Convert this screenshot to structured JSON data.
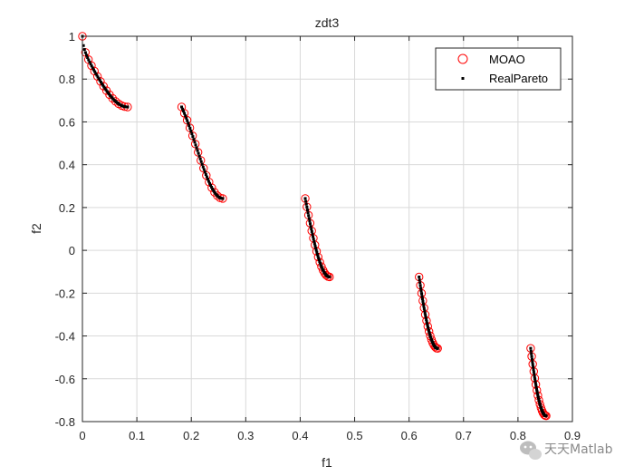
{
  "chart_data": {
    "type": "scatter",
    "title": "zdt3",
    "xlabel": "f1",
    "ylabel": "f2",
    "xlim": [
      0,
      0.9
    ],
    "ylim": [
      -0.8,
      1
    ],
    "xticks": [
      "0",
      "0.1",
      "0.2",
      "0.3",
      "0.4",
      "0.5",
      "0.6",
      "0.7",
      "0.8",
      "0.9"
    ],
    "yticks": [
      "-0.8",
      "-0.6",
      "-0.4",
      "-0.2",
      "0",
      "0.2",
      "0.4",
      "0.6",
      "0.8",
      "1"
    ],
    "grid": true,
    "legend_position": "top-right",
    "segments": [
      {
        "x_start": 0.0,
        "x_end": 0.083
      },
      {
        "x_start": 0.1822,
        "x_end": 0.2578
      },
      {
        "x_start": 0.4093,
        "x_end": 0.4539
      },
      {
        "x_start": 0.6184,
        "x_end": 0.6525
      },
      {
        "x_start": 0.8233,
        "x_end": 0.8518
      }
    ],
    "series": [
      {
        "name": "MOAO",
        "marker": "circle",
        "color": "#ff0000",
        "points_per_segment": 16
      },
      {
        "name": "RealPareto",
        "marker": "point",
        "color": "#000000",
        "points_per_segment": 45
      }
    ]
  },
  "watermark": {
    "text": "天天Matlab",
    "icon": "wechat-icon"
  }
}
